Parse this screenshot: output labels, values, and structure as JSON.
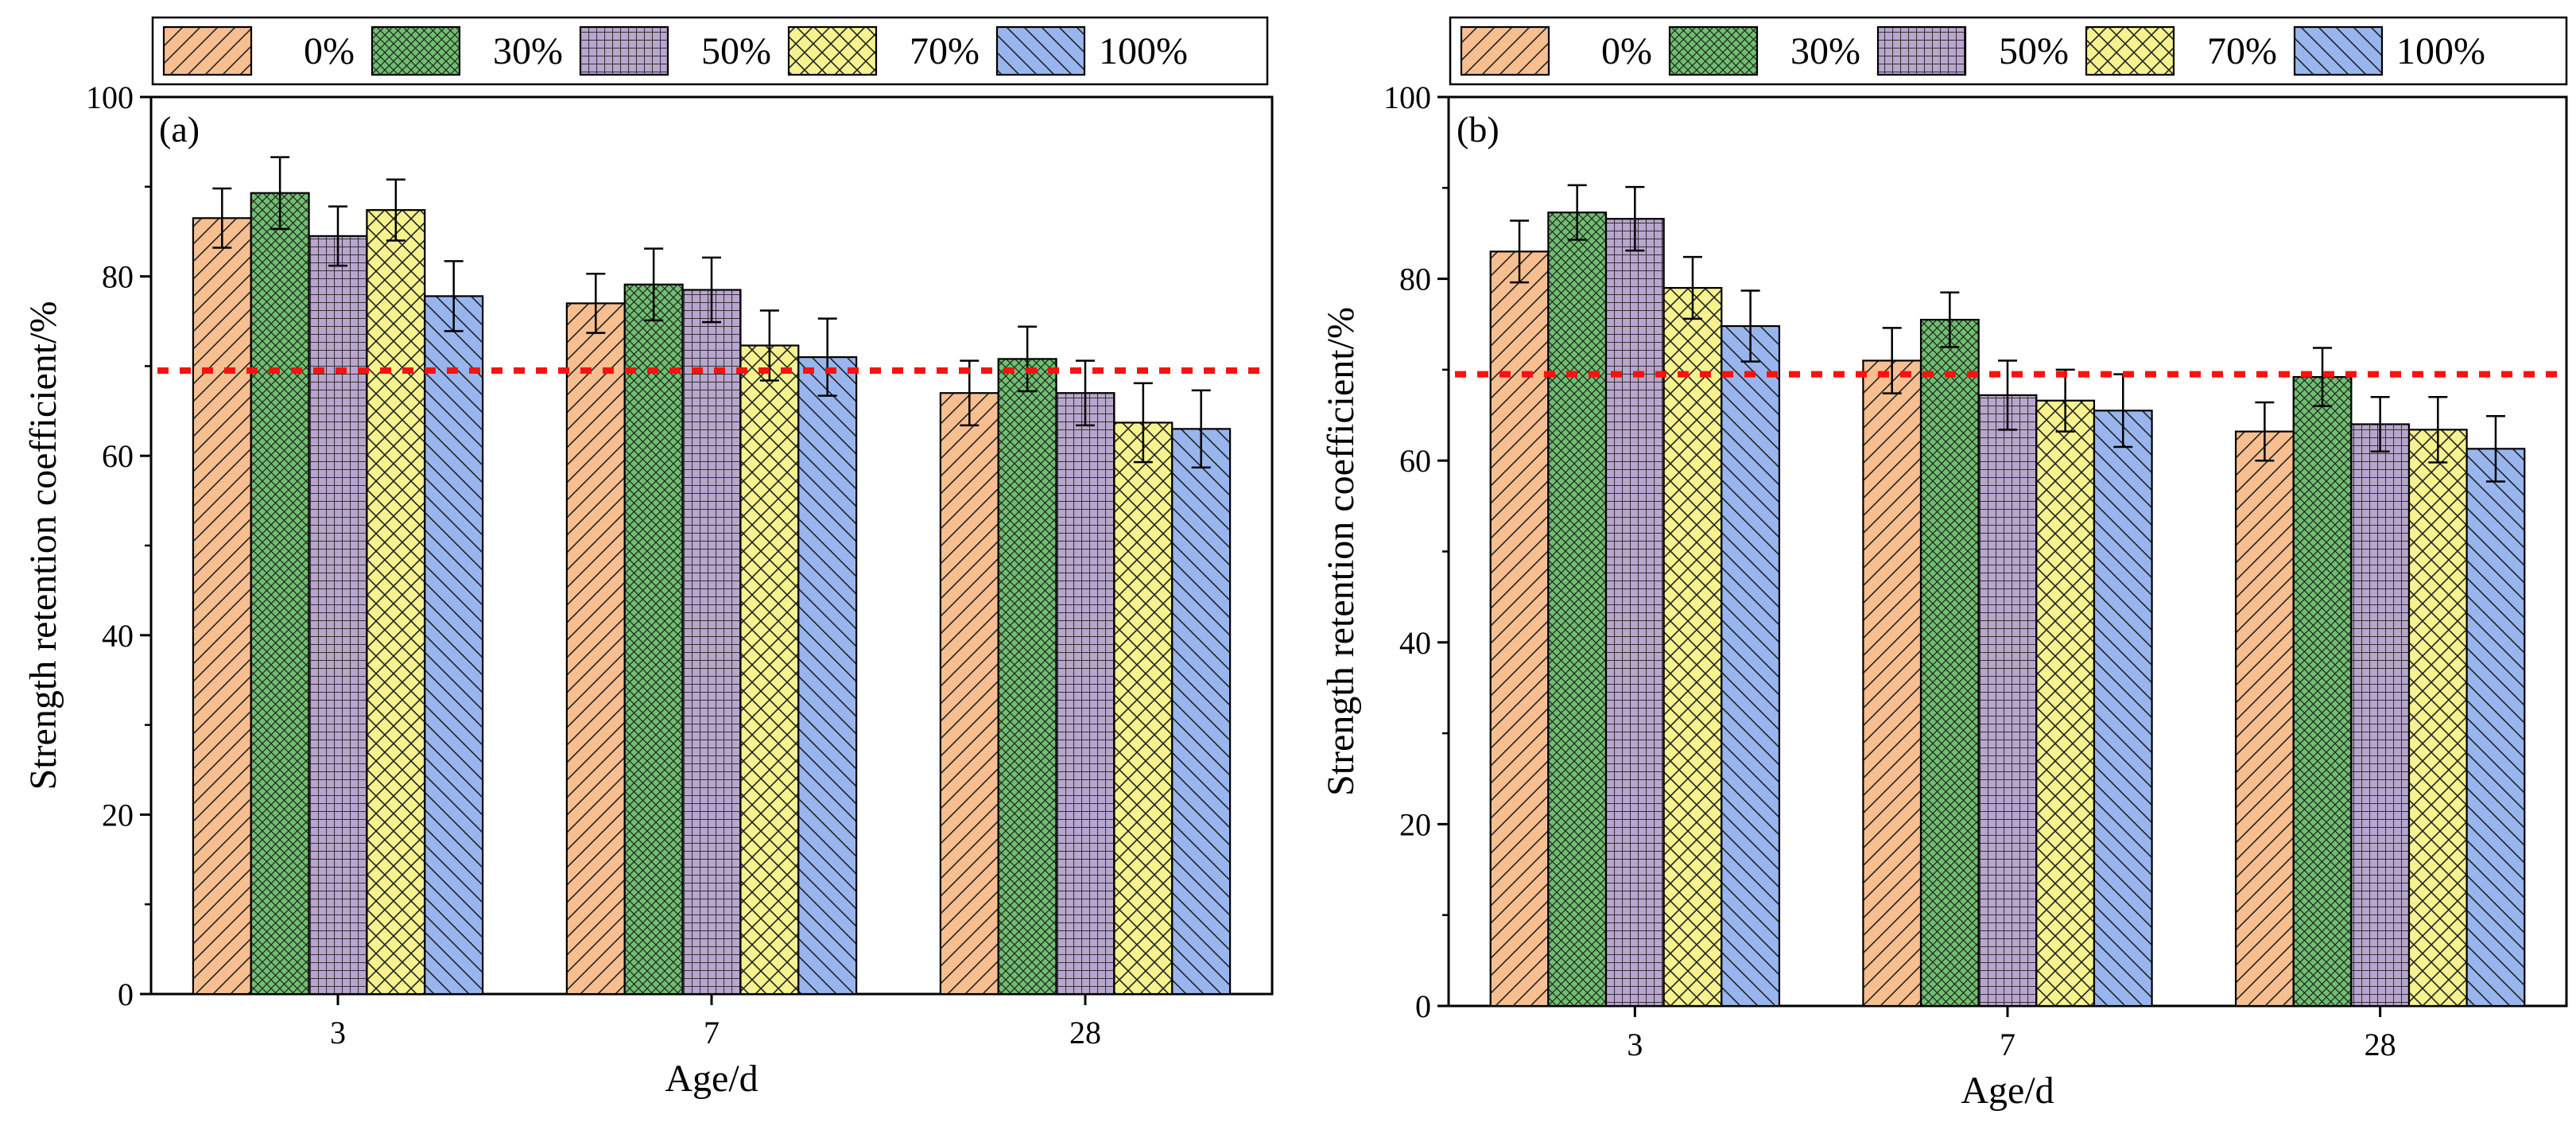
{
  "colors": {
    "series": [
      "#F7BE90",
      "#6FBF70",
      "#B9A6CF",
      "#F5F28F",
      "#98B5EE"
    ],
    "threshold": "#FF1010",
    "axis": "#000000"
  },
  "patterns": [
    "hatch-forward",
    "crosshatch-fine",
    "grid",
    "crosshatch-diagonal",
    "hatch-back"
  ],
  "chart_data": [
    {
      "type": "bar",
      "panel_label": "(a)",
      "categories": [
        "3",
        "7",
        "28"
      ],
      "series": [
        {
          "name": "0%",
          "values": [
            86.5,
            77.0,
            67.0
          ],
          "errors": [
            3.3,
            3.3,
            3.6
          ]
        },
        {
          "name": "30%",
          "values": [
            89.3,
            79.1,
            70.8
          ],
          "errors": [
            4.0,
            4.0,
            3.6
          ]
        },
        {
          "name": "50%",
          "values": [
            84.5,
            78.5,
            67.0
          ],
          "errors": [
            3.3,
            3.6,
            3.6
          ]
        },
        {
          "name": "70%",
          "values": [
            87.4,
            72.3,
            63.7
          ],
          "errors": [
            3.4,
            3.9,
            4.4
          ]
        },
        {
          "name": "100%",
          "values": [
            77.8,
            71.0,
            63.0
          ],
          "errors": [
            3.9,
            4.3,
            4.3
          ]
        }
      ],
      "threshold": 69.5,
      "xlabel": "Age/d",
      "ylabel": "Strength retention coefficient/%",
      "ylim": [
        0,
        100
      ],
      "yticks": [
        0,
        20,
        40,
        60,
        80,
        100
      ],
      "legend": "top"
    },
    {
      "type": "bar",
      "panel_label": "(b)",
      "categories": [
        "3",
        "7",
        "28"
      ],
      "series": [
        {
          "name": "0%",
          "values": [
            83.0,
            71.0,
            63.2
          ],
          "errors": [
            3.4,
            3.6,
            3.2
          ]
        },
        {
          "name": "30%",
          "values": [
            87.3,
            75.5,
            69.2
          ],
          "errors": [
            3.0,
            3.0,
            3.2
          ]
        },
        {
          "name": "50%",
          "values": [
            86.6,
            67.2,
            64.0
          ],
          "errors": [
            3.5,
            3.8,
            3.0
          ]
        },
        {
          "name": "70%",
          "values": [
            79.0,
            66.6,
            63.4
          ],
          "errors": [
            3.4,
            3.4,
            3.6
          ]
        },
        {
          "name": "100%",
          "values": [
            74.8,
            65.5,
            61.3
          ],
          "errors": [
            3.9,
            4.0,
            3.6
          ]
        }
      ],
      "threshold": 69.5,
      "xlabel": "Age/d",
      "ylabel": "Strength retention coefficient/%",
      "ylim": [
        0,
        100
      ],
      "yticks": [
        0,
        20,
        40,
        60,
        80,
        100
      ],
      "legend": "top"
    }
  ]
}
